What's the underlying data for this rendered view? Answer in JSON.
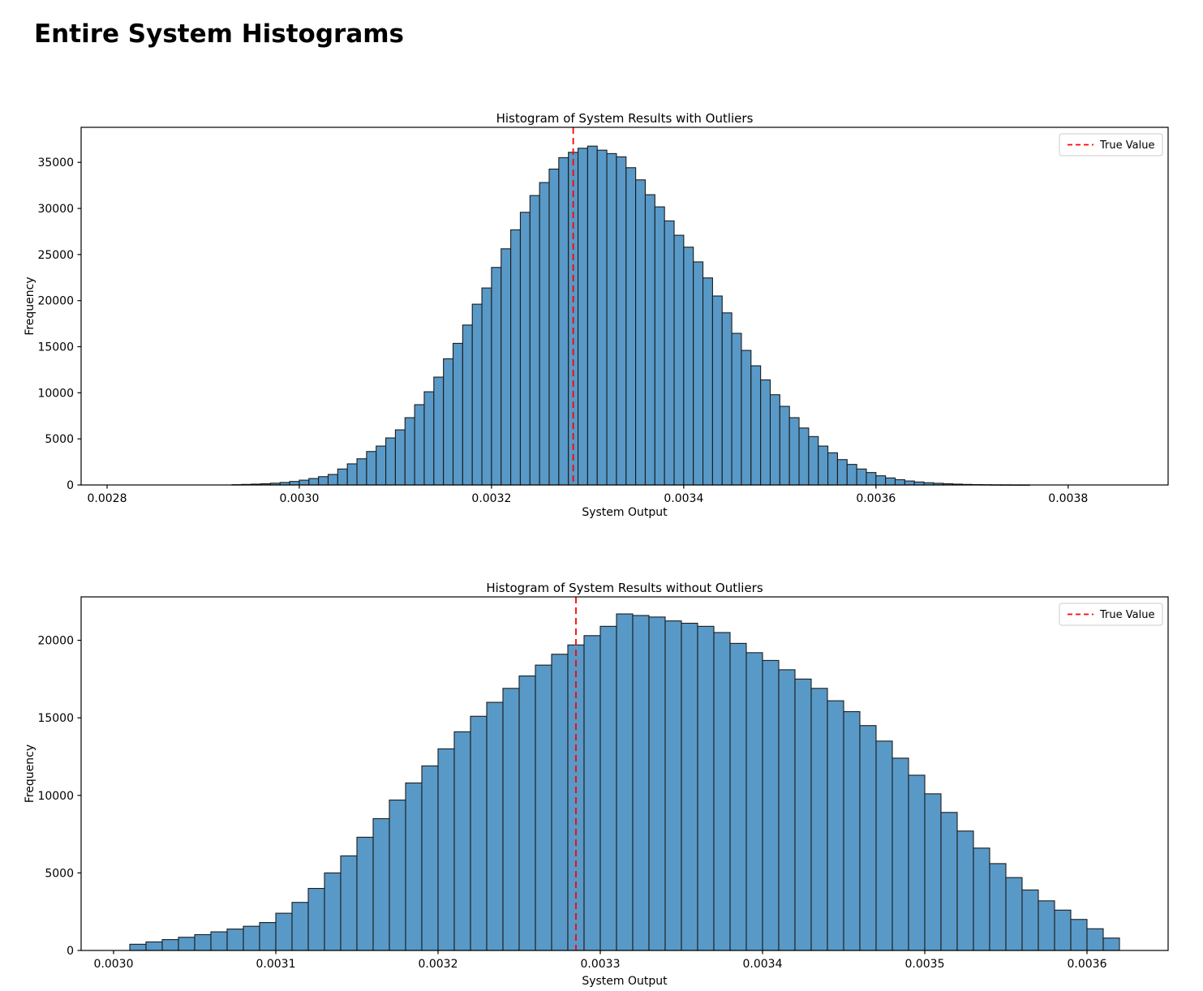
{
  "page_title": "Entire System Histograms",
  "colors": {
    "bar_fill": "#5999C7",
    "bar_edge": "#1b1b1b",
    "true_value_line": "#ff0000",
    "axis": "#000000",
    "legend_border": "#cccccc",
    "background": "#ffffff"
  },
  "chart_data": [
    {
      "type": "bar",
      "subtype": "histogram",
      "title": "Histogram of System Results with Outliers",
      "xlabel": "System Output",
      "ylabel": "Frequency",
      "legend": [
        "True Value"
      ],
      "legend_position": "upper right",
      "grid": false,
      "true_value": 0.003285,
      "true_value_style": "dashed",
      "xlim": [
        0.002773,
        0.003904
      ],
      "ylim": [
        0,
        38800
      ],
      "xticks": [
        0.0028,
        0.003,
        0.0032,
        0.0034,
        0.0036,
        0.0038
      ],
      "xtick_labels": [
        "0.0028",
        "0.0030",
        "0.0032",
        "0.0034",
        "0.0036",
        "0.0038"
      ],
      "yticks": [
        0,
        5000,
        10000,
        15000,
        20000,
        25000,
        30000,
        35000
      ],
      "ytick_labels": [
        "0",
        "5000",
        "10000",
        "15000",
        "20000",
        "25000",
        "30000",
        "35000"
      ],
      "bin_start": 0.00293,
      "bin_width": 1e-05,
      "frequencies": [
        30,
        60,
        90,
        130,
        190,
        270,
        380,
        520,
        700,
        900,
        1140,
        1730,
        2290,
        2840,
        3630,
        4220,
        5100,
        5980,
        7300,
        8710,
        10110,
        11700,
        13690,
        15360,
        17350,
        19610,
        21370,
        23600,
        25620,
        27680,
        29580,
        31400,
        32810,
        34270,
        35510,
        36090,
        36530,
        36760,
        36320,
        35950,
        35600,
        34420,
        33100,
        31490,
        30170,
        28650,
        27090,
        25800,
        24200,
        22460,
        20500,
        18670,
        16450,
        14600,
        12930,
        11400,
        9790,
        8530,
        7300,
        6180,
        5250,
        4220,
        3490,
        2750,
        2230,
        1730,
        1350,
        995,
        760,
        570,
        430,
        320,
        240,
        180,
        130,
        90,
        60,
        40,
        25,
        15,
        10,
        5,
        3
      ]
    },
    {
      "type": "bar",
      "subtype": "histogram",
      "title": "Histogram of System Results without Outliers",
      "xlabel": "System Output",
      "ylabel": "Frequency",
      "legend": [
        "True Value"
      ],
      "legend_position": "upper right",
      "grid": false,
      "true_value": 0.003285,
      "true_value_style": "dashed",
      "xlim": [
        0.00298,
        0.00365
      ],
      "ylim": [
        0,
        22800
      ],
      "xticks": [
        0.003,
        0.0031,
        0.0032,
        0.0033,
        0.0034,
        0.0035,
        0.0036
      ],
      "xtick_labels": [
        "0.0030",
        "0.0031",
        "0.0032",
        "0.0033",
        "0.0034",
        "0.0035",
        "0.0036"
      ],
      "yticks": [
        0,
        5000,
        10000,
        15000,
        20000
      ],
      "ytick_labels": [
        "0",
        "5000",
        "10000",
        "15000",
        "20000"
      ],
      "bin_start": 0.00301,
      "bin_width": 1e-05,
      "frequencies": [
        400,
        550,
        700,
        850,
        1020,
        1200,
        1380,
        1560,
        1800,
        2400,
        3100,
        4000,
        5000,
        6100,
        7300,
        8500,
        9700,
        10800,
        11900,
        13000,
        14100,
        15100,
        16000,
        16900,
        17700,
        18400,
        19100,
        19700,
        20300,
        20900,
        21700,
        21600,
        21500,
        21250,
        21100,
        20900,
        20500,
        19800,
        19200,
        18700,
        18100,
        17500,
        16900,
        16100,
        15400,
        14500,
        13500,
        12400,
        11300,
        10100,
        8900,
        7700,
        6600,
        5600,
        4700,
        3900,
        3200,
        2600,
        2000,
        1400,
        800
      ]
    }
  ]
}
